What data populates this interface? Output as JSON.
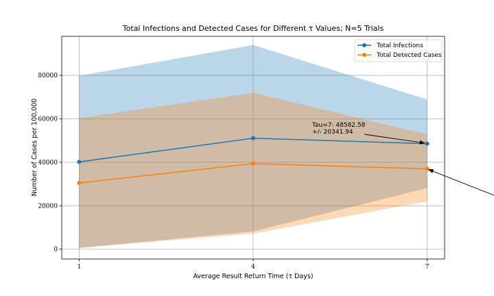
{
  "chart_data": {
    "type": "line",
    "title": "Total Infections and Detected Cases for Different τ Values; N=5 Trials",
    "xlabel": "Average Result Return Time (τ Days)",
    "ylabel": "Number of Cases per 100,000",
    "x": [
      1,
      4,
      7
    ],
    "xticks": [
      "1",
      "4",
      "7"
    ],
    "yticks": [
      0,
      20000,
      40000,
      60000,
      80000
    ],
    "ytick_labels": [
      "0",
      "20000",
      "40000",
      "60000",
      "80000"
    ],
    "xlim": [
      0.7,
      7.3
    ],
    "ylim": [
      -4500,
      98000
    ],
    "grid": true,
    "legend_position": "top-right",
    "series": [
      {
        "name": "Total Infections",
        "color": "#1f77b4",
        "band_color": "#1f77b4",
        "values": [
          40200,
          51100,
          48582.58
        ],
        "upper": [
          79800,
          94000,
          68900
        ],
        "lower": [
          600,
          8200,
          28200
        ]
      },
      {
        "name": "Total Detected Cases",
        "color": "#ff7f0e",
        "band_color": "#ff7f0e",
        "values": [
          30500,
          39400,
          37000
        ],
        "upper": [
          60300,
          72000,
          52800
        ],
        "lower": [
          600,
          7200,
          22000
        ]
      }
    ],
    "annotations": [
      {
        "line1": "Tau=7: 48582.58",
        "line2": "+/- 20341.94",
        "target_series": 0,
        "target_x": 7
      },
      {
        "line1": "",
        "line2": "",
        "target_series": 1,
        "target_x": 7
      }
    ]
  }
}
